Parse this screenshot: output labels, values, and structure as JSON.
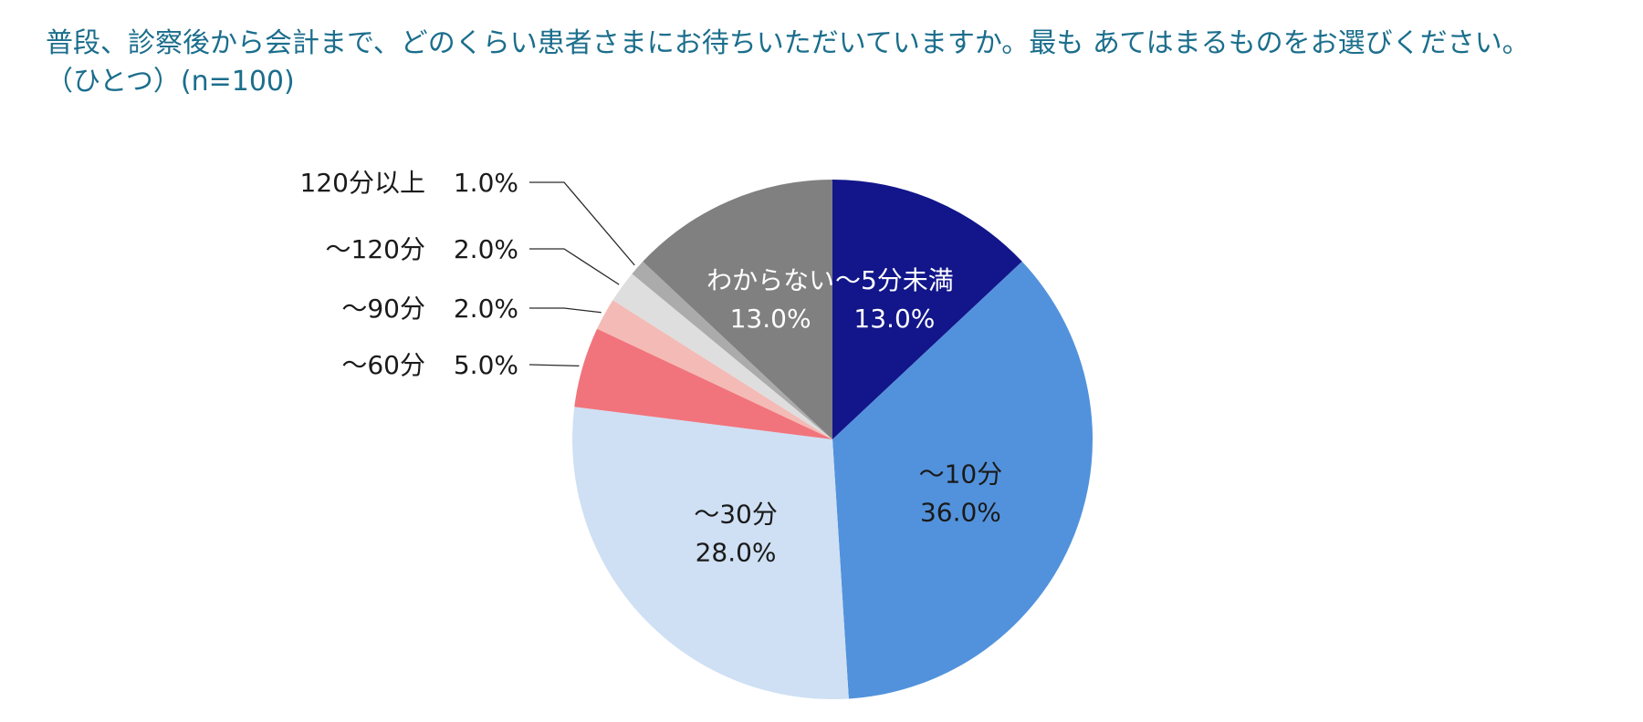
{
  "chart_data": {
    "type": "pie",
    "title": "普段、診察後から会計まで、どのくらい患者さまにお待ちいただいていますか。最も あてはまるものをお選びください。",
    "subtitle": "（ひとつ）(n=100)",
    "slices": [
      {
        "name": "～5分未満",
        "value": 13.0,
        "label": "13.0%",
        "color": "#12168a",
        "text_color": "#ffffff"
      },
      {
        "name": "～10分",
        "value": 36.0,
        "label": "36.0%",
        "color": "#5292dc",
        "text_color": "#1a1a1a"
      },
      {
        "name": "～30分",
        "value": 28.0,
        "label": "28.0%",
        "color": "#cfe0f4",
        "text_color": "#1a1a1a"
      },
      {
        "name": "～60分",
        "value": 5.0,
        "label": "5.0%",
        "color": "#f1747c",
        "text_color": "#1a1a1a"
      },
      {
        "name": "～90分",
        "value": 2.0,
        "label": "2.0%",
        "color": "#f4bab6",
        "text_color": "#1a1a1a"
      },
      {
        "name": "～120分",
        "value": 2.0,
        "label": "2.0%",
        "color": "#dedede",
        "text_color": "#1a1a1a"
      },
      {
        "name": "120分以上",
        "value": 1.0,
        "label": "1.0%",
        "color": "#ababab",
        "text_color": "#1a1a1a"
      },
      {
        "name": "わからない",
        "value": 13.0,
        "label": "13.0%",
        "color": "#808080",
        "text_color": "#ffffff"
      }
    ]
  }
}
